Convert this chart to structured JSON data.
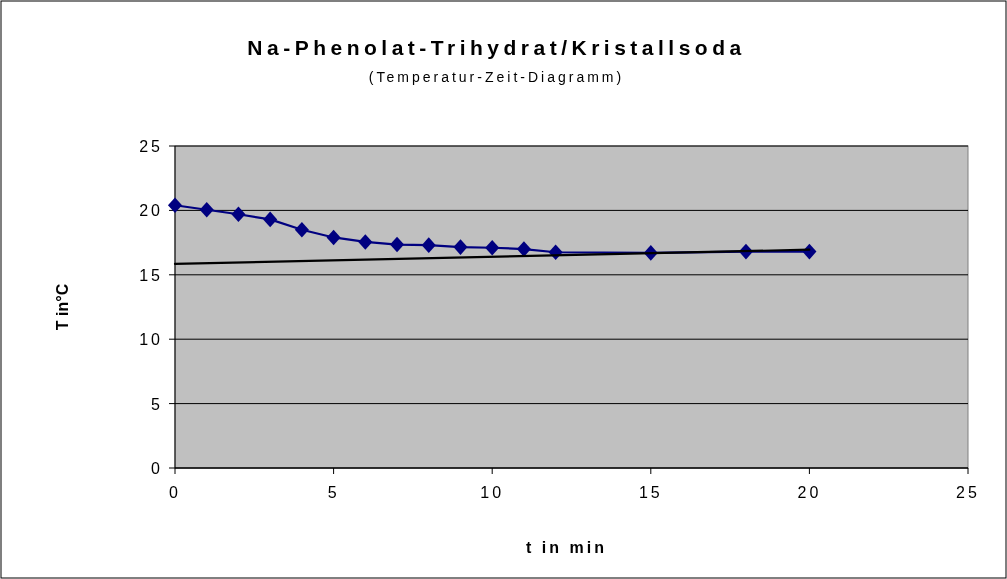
{
  "chart_data": {
    "type": "line",
    "title": "Na-Phenolat-Trihydrat/Kristallsoda",
    "subtitle": "(Temperatur-Zeit-Diagramm)",
    "xlabel": "t in min",
    "ylabel": "T in°C",
    "xlim": [
      0,
      25
    ],
    "xticks": [
      0,
      5,
      10,
      15,
      20,
      25
    ],
    "ylim": [
      0,
      25
    ],
    "yticks": [
      0,
      5,
      10,
      15,
      20,
      25
    ],
    "grid": "y",
    "series": [
      {
        "color": "#000080",
        "marker": "diamond",
        "x": [
          0,
          1,
          2,
          3,
          4,
          5,
          6,
          7,
          8,
          9,
          10,
          11,
          12,
          15,
          18,
          20
        ],
        "values": [
          20.4,
          20.05,
          19.7,
          19.3,
          18.5,
          17.9,
          17.55,
          17.35,
          17.3,
          17.15,
          17.1,
          17.0,
          16.75,
          16.7,
          16.8,
          16.8
        ]
      },
      {
        "color": "#000000",
        "marker": "none",
        "x": [
          0,
          20
        ],
        "values": [
          15.85,
          16.95
        ]
      }
    ]
  }
}
